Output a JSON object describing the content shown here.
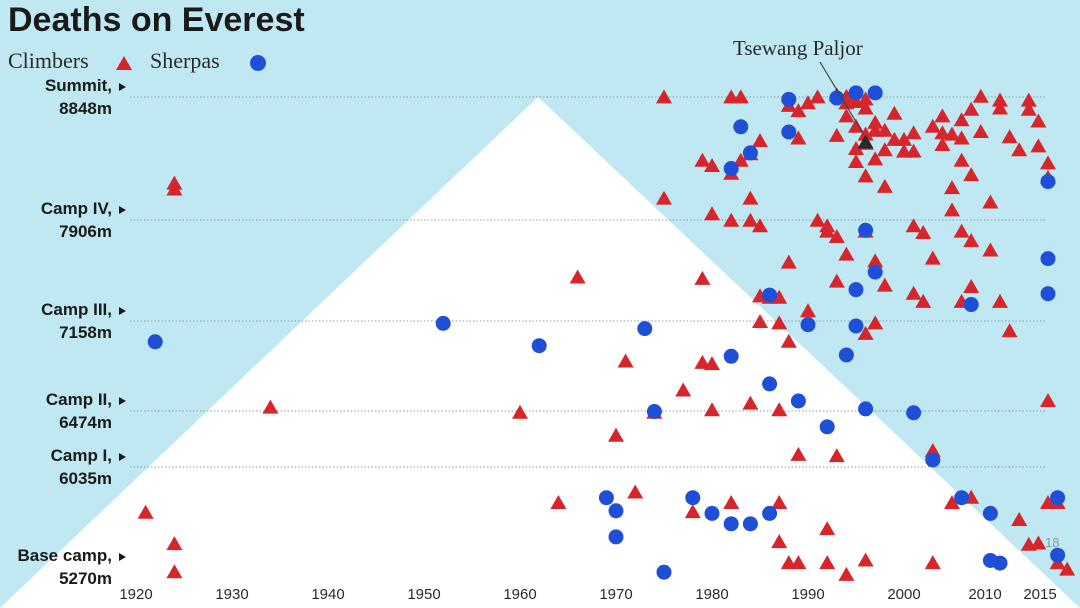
{
  "chart_data": {
    "type": "scatter",
    "title": "Deaths on Everest",
    "legend": [
      {
        "name": "Climbers",
        "shape": "triangle",
        "color": "#d7262b"
      },
      {
        "name": "Sherpas",
        "shape": "circle",
        "color": "#1f4fd6"
      }
    ],
    "legend_placement": "top-left",
    "x_ticks": [
      1920,
      1930,
      1940,
      1950,
      1960,
      1970,
      1980,
      1990,
      2000,
      2010,
      2015
    ],
    "xlim": [
      1918,
      2018
    ],
    "ylim": [
      5270,
      8848
    ],
    "camps": [
      {
        "label_line1": "Summit,",
        "label_line2": "8848m",
        "altitude": 8848
      },
      {
        "label_line1": "Camp IV,",
        "label_line2": "7906m",
        "altitude": 7906
      },
      {
        "label_line1": "Camp III,",
        "label_line2": "7158m",
        "altitude": 7158
      },
      {
        "label_line1": "Camp II,",
        "label_line2": "6474m",
        "altitude": 6474
      },
      {
        "label_line1": "Camp I,",
        "label_line2": "6035m",
        "altitude": 6035
      },
      {
        "label_line1": "Base camp,",
        "label_line2": "5270m",
        "altitude": 5270
      }
    ],
    "annotation": {
      "text": "Tsewang Paljor",
      "year": 1996,
      "altitude": 8500
    },
    "corner_label": "18",
    "background_color": "#bfe8f2",
    "mountain_color": "#ffffff",
    "series": [
      {
        "name": "Climbers",
        "points": [
          [
            1921,
            5685
          ],
          [
            1924,
            5445
          ],
          [
            1924,
            5230
          ],
          [
            1924,
            8140
          ],
          [
            1924,
            8185
          ],
          [
            1934,
            6500
          ],
          [
            1960,
            6460
          ],
          [
            1964,
            5760
          ],
          [
            1966,
            7480
          ],
          [
            1970,
            6280
          ],
          [
            1971,
            6850
          ],
          [
            1972,
            5840
          ],
          [
            1974,
            6460
          ],
          [
            1975,
            8845
          ],
          [
            1975,
            8070
          ],
          [
            1977,
            6630
          ],
          [
            1978,
            5690
          ],
          [
            1979,
            6840
          ],
          [
            1979,
            7470
          ],
          [
            1979,
            8360
          ],
          [
            1980,
            6480
          ],
          [
            1980,
            6830
          ],
          [
            1980,
            8320
          ],
          [
            1980,
            7950
          ],
          [
            1982,
            5760
          ],
          [
            1982,
            8260
          ],
          [
            1982,
            8845
          ],
          [
            1982,
            7900
          ],
          [
            1983,
            8845
          ],
          [
            1983,
            8360
          ],
          [
            1984,
            8410
          ],
          [
            1984,
            7900
          ],
          [
            1984,
            8070
          ],
          [
            1984,
            6530
          ],
          [
            1985,
            7860
          ],
          [
            1985,
            8510
          ],
          [
            1985,
            7150
          ],
          [
            1985,
            7340
          ],
          [
            1986,
            7340
          ],
          [
            1986,
            7330
          ],
          [
            1987,
            5460
          ],
          [
            1987,
            5760
          ],
          [
            1987,
            7330
          ],
          [
            1987,
            6480
          ],
          [
            1987,
            7140
          ],
          [
            1988,
            5300
          ],
          [
            1988,
            8780
          ],
          [
            1988,
            7590
          ],
          [
            1988,
            7000
          ],
          [
            1989,
            6130
          ],
          [
            1989,
            5300
          ],
          [
            1989,
            8740
          ],
          [
            1989,
            8530
          ],
          [
            1990,
            7230
          ],
          [
            1990,
            8800
          ],
          [
            1991,
            8845
          ],
          [
            1991,
            7900
          ],
          [
            1992,
            5560
          ],
          [
            1992,
            5300
          ],
          [
            1992,
            7860
          ],
          [
            1992,
            7820
          ],
          [
            1993,
            8860
          ],
          [
            1993,
            8550
          ],
          [
            1993,
            6120
          ],
          [
            1993,
            7780
          ],
          [
            1993,
            7450
          ],
          [
            1994,
            8850
          ],
          [
            1994,
            8700
          ],
          [
            1994,
            8800
          ],
          [
            1994,
            5210
          ],
          [
            1994,
            7650
          ],
          [
            1995,
            8810
          ],
          [
            1995,
            8450
          ],
          [
            1995,
            8620
          ],
          [
            1995,
            8350
          ],
          [
            1996,
            8760
          ],
          [
            1996,
            8830
          ],
          [
            1996,
            8560
          ],
          [
            1996,
            8490
          ],
          [
            1996,
            8240
          ],
          [
            1996,
            7820
          ],
          [
            1996,
            7060
          ],
          [
            1996,
            5320
          ],
          [
            1997,
            8650
          ],
          [
            1997,
            8590
          ],
          [
            1997,
            7600
          ],
          [
            1997,
            7140
          ],
          [
            1997,
            8370
          ],
          [
            1998,
            8590
          ],
          [
            1998,
            8160
          ],
          [
            1998,
            7420
          ],
          [
            1998,
            8440
          ],
          [
            1999,
            8520
          ],
          [
            1999,
            8720
          ],
          [
            2000,
            8430
          ],
          [
            2000,
            8520
          ],
          [
            2001,
            8570
          ],
          [
            2001,
            8430
          ],
          [
            2001,
            7360
          ],
          [
            2001,
            7860
          ],
          [
            2002,
            7810
          ],
          [
            2002,
            7300
          ],
          [
            2003,
            5300
          ],
          [
            2003,
            6160
          ],
          [
            2003,
            7620
          ],
          [
            2003,
            8620
          ],
          [
            2004,
            8570
          ],
          [
            2004,
            8480
          ],
          [
            2004,
            8700
          ],
          [
            2005,
            7980
          ],
          [
            2005,
            8150
          ],
          [
            2005,
            5760
          ],
          [
            2005,
            8560
          ],
          [
            2006,
            8670
          ],
          [
            2006,
            8360
          ],
          [
            2006,
            7300
          ],
          [
            2006,
            7820
          ],
          [
            2006,
            8530
          ],
          [
            2007,
            7410
          ],
          [
            2007,
            7750
          ],
          [
            2007,
            5800
          ],
          [
            2007,
            8750
          ],
          [
            2007,
            8250
          ],
          [
            2008,
            8850
          ],
          [
            2008,
            8580
          ],
          [
            2009,
            7680
          ],
          [
            2009,
            8040
          ],
          [
            2010,
            8820
          ],
          [
            2010,
            8760
          ],
          [
            2010,
            7300
          ],
          [
            2011,
            7080
          ],
          [
            2011,
            8540
          ],
          [
            2012,
            8440
          ],
          [
            2012,
            5630
          ],
          [
            2013,
            8750
          ],
          [
            2013,
            5440
          ],
          [
            2013,
            8820
          ],
          [
            2014,
            8660
          ],
          [
            2014,
            8470
          ],
          [
            2014,
            5450
          ],
          [
            2015,
            5760
          ],
          [
            2015,
            8230
          ],
          [
            2015,
            8340
          ],
          [
            2015,
            6550
          ],
          [
            2016,
            5760
          ],
          [
            2016,
            5300
          ],
          [
            2017,
            5250
          ]
        ]
      },
      {
        "name": "Sherpas",
        "points": [
          [
            1922,
            7000
          ],
          [
            1952,
            7140
          ],
          [
            1962,
            6970
          ],
          [
            1969,
            5800
          ],
          [
            1970,
            5700
          ],
          [
            1970,
            5500
          ],
          [
            1973,
            7100
          ],
          [
            1974,
            6470
          ],
          [
            1975,
            5230
          ],
          [
            1978,
            5800
          ],
          [
            1980,
            5680
          ],
          [
            1982,
            6890
          ],
          [
            1982,
            5600
          ],
          [
            1982,
            8300
          ],
          [
            1983,
            8620
          ],
          [
            1984,
            8420
          ],
          [
            1984,
            5600
          ],
          [
            1986,
            5680
          ],
          [
            1986,
            6680
          ],
          [
            1986,
            7350
          ],
          [
            1988,
            8830
          ],
          [
            1988,
            8580
          ],
          [
            1989,
            6550
          ],
          [
            1990,
            7130
          ],
          [
            1992,
            6350
          ],
          [
            1993,
            8840
          ],
          [
            1994,
            6900
          ],
          [
            1995,
            7390
          ],
          [
            1995,
            8880
          ],
          [
            1995,
            7120
          ],
          [
            1996,
            6490
          ],
          [
            1996,
            7830
          ],
          [
            1997,
            8880
          ],
          [
            1997,
            7520
          ],
          [
            2001,
            6460
          ],
          [
            2003,
            6090
          ],
          [
            2006,
            5800
          ],
          [
            2007,
            7280
          ],
          [
            2009,
            5680
          ],
          [
            2009,
            5320
          ],
          [
            2010,
            5300
          ],
          [
            2015,
            8200
          ],
          [
            2015,
            7360
          ],
          [
            2015,
            7620
          ],
          [
            2016,
            5360
          ],
          [
            2016,
            5800
          ]
        ]
      }
    ]
  }
}
